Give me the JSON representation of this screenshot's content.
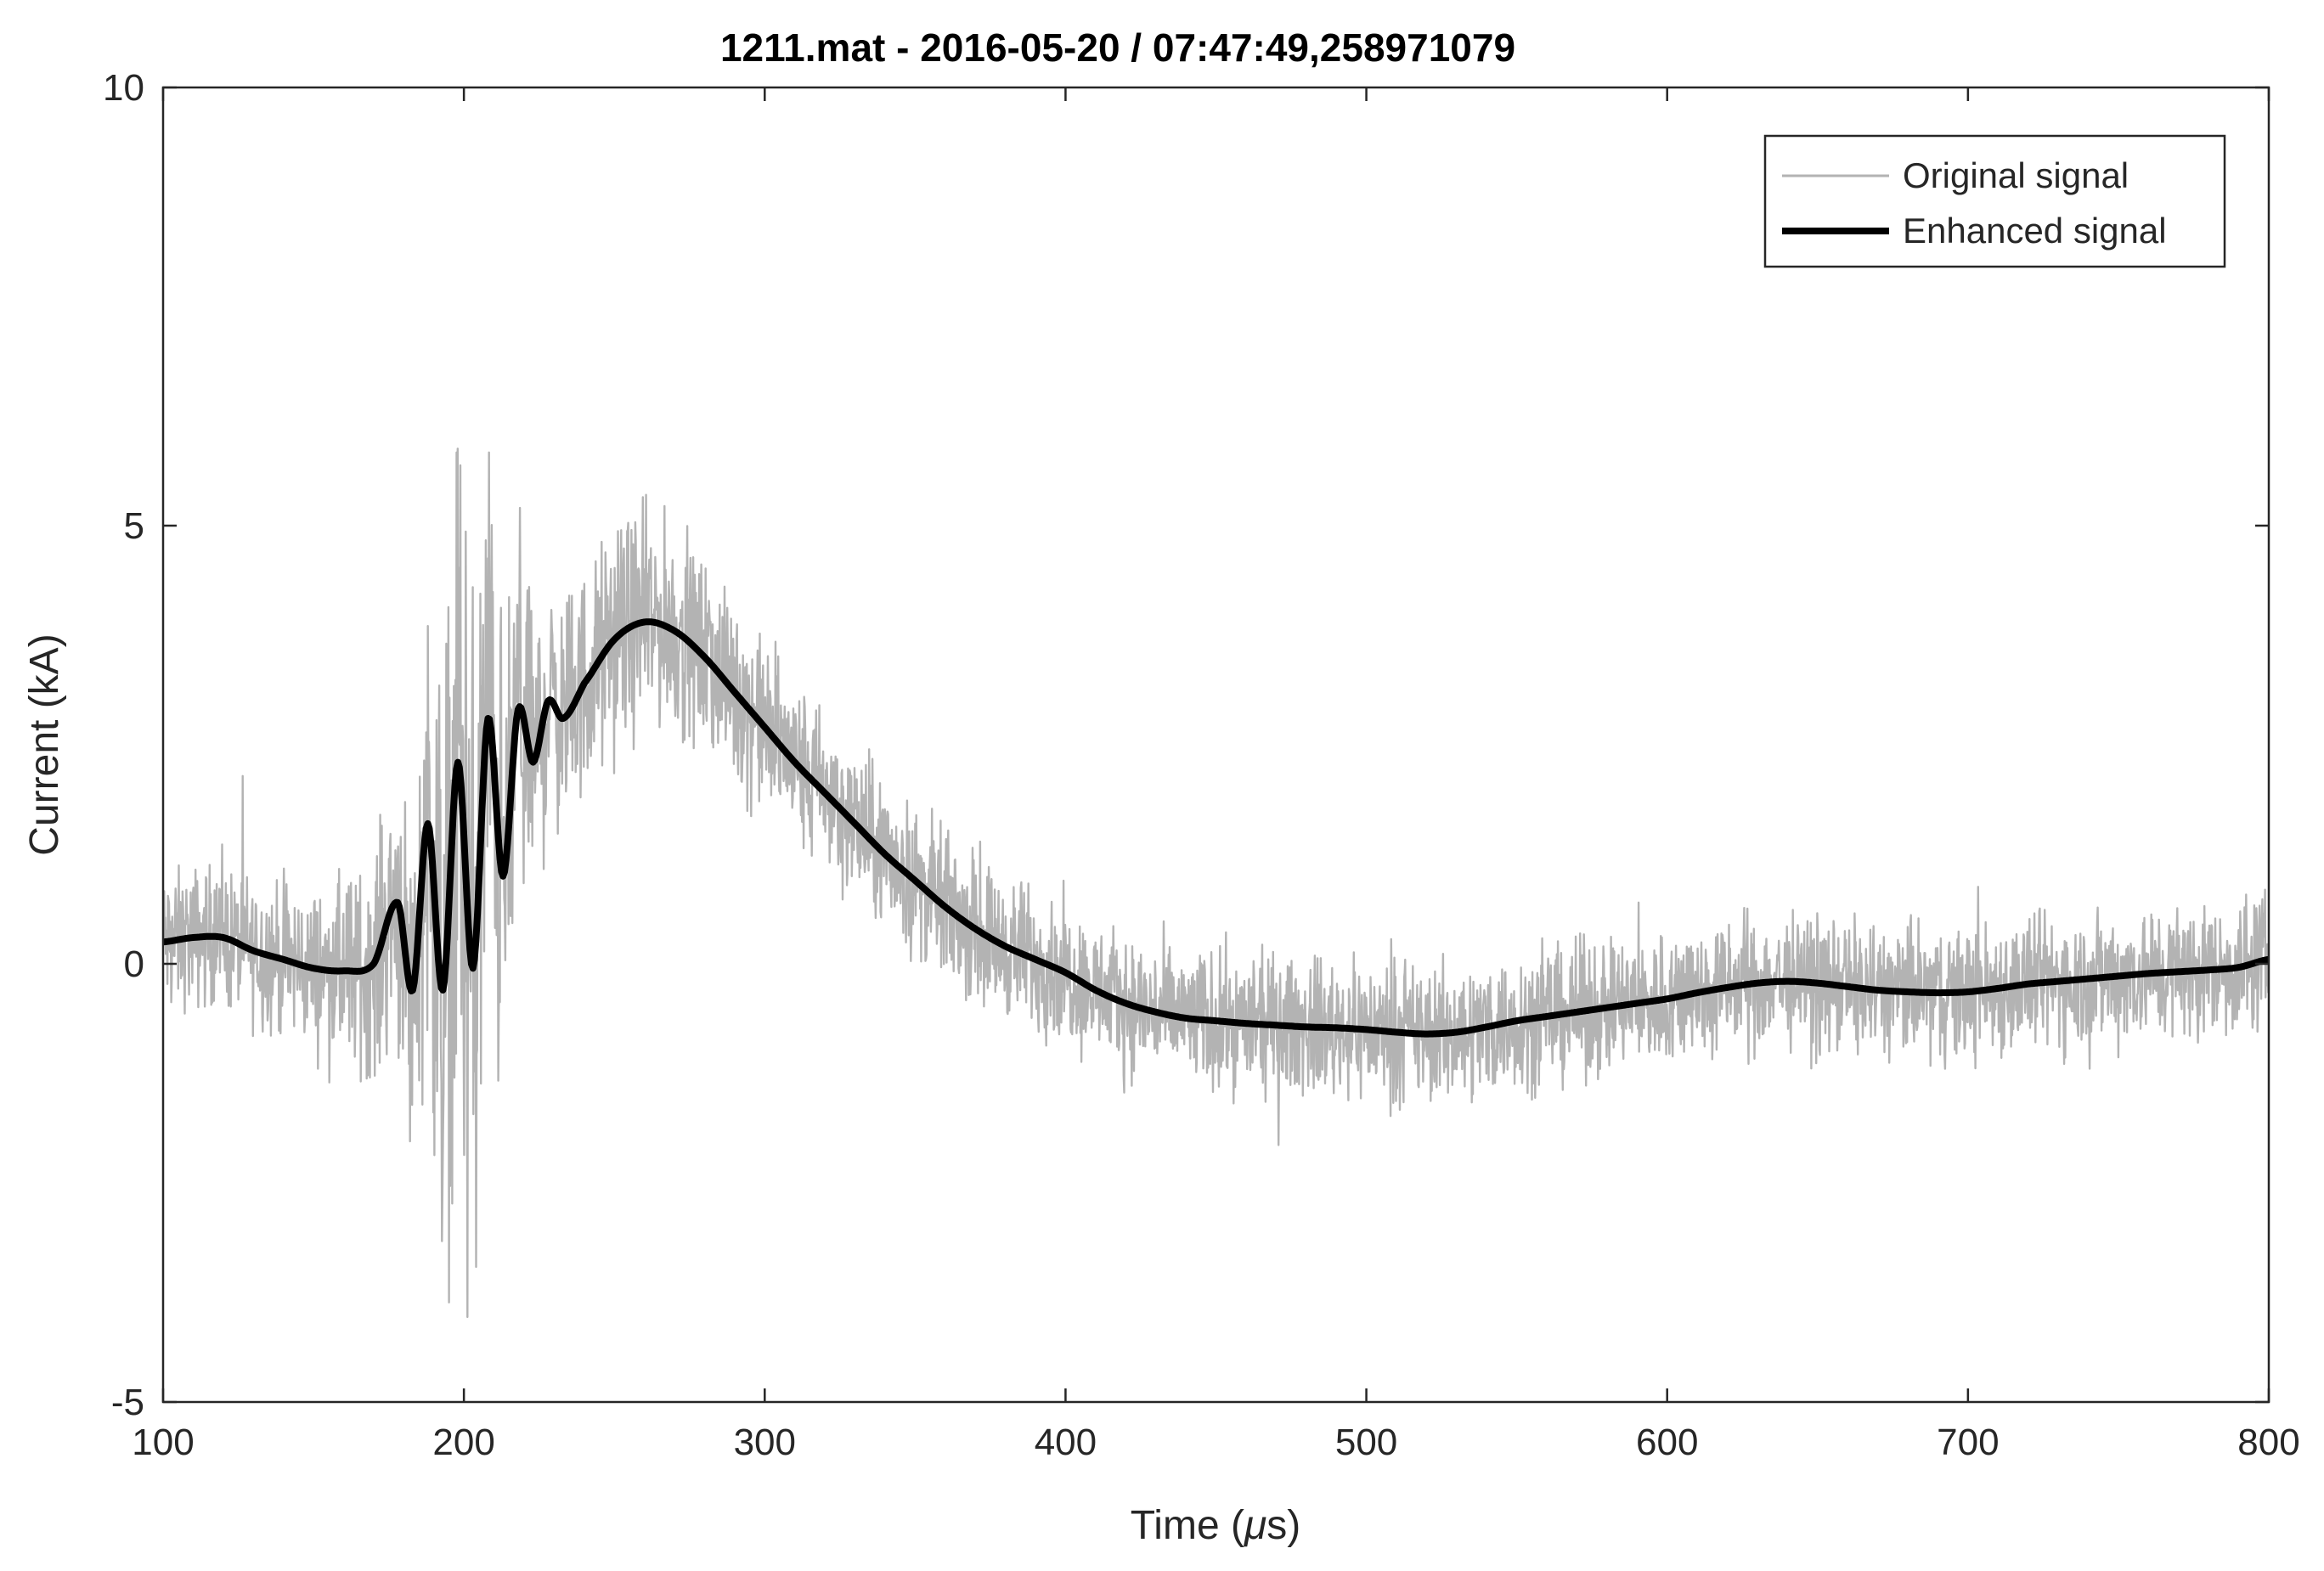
{
  "chart_data": {
    "type": "line",
    "title": "1211.mat - 2016-05-20 / 07:47:49,258971079",
    "xlabel_prefix": "Time (",
    "xlabel_mu": "μ",
    "xlabel_suffix": "s)",
    "ylabel": "Current (kA)",
    "xlim": [
      100,
      800
    ],
    "ylim": [
      -5,
      10
    ],
    "x_ticks": [
      100,
      200,
      300,
      400,
      500,
      600,
      700,
      800
    ],
    "y_ticks": [
      -5,
      0,
      5,
      10
    ],
    "grid": false,
    "legend_position": "top-right",
    "colors": {
      "original": "#b3b3b3",
      "enhanced": "#000000"
    },
    "series": [
      {
        "name": "Original signal",
        "noise_envelope": {
          "x": [
            100,
            150,
            170,
            185,
            195,
            200,
            205,
            215,
            230,
            260,
            290,
            330,
            370,
            420,
            500,
            600,
            700,
            800
          ],
          "amplitude": [
            1.4,
            1.6,
            2.2,
            3.8,
            7.0,
            9.0,
            7.0,
            4.5,
            2.4,
            2.2,
            1.8,
            1.6,
            1.5,
            1.4,
            1.4,
            1.4,
            1.4,
            1.4
          ]
        }
      },
      {
        "name": "Enhanced signal",
        "x": [
          100,
          110,
          120,
          130,
          140,
          150,
          160,
          170,
          178,
          183,
          188,
          193,
          198,
          203,
          208,
          213,
          218,
          223,
          228,
          233,
          240,
          250,
          260,
          270,
          280,
          290,
          300,
          310,
          320,
          330,
          340,
          350,
          360,
          370,
          380,
          390,
          400,
          410,
          420,
          430,
          440,
          450,
          460,
          470,
          480,
          490,
          500,
          510,
          520,
          530,
          540,
          550,
          560,
          570,
          580,
          590,
          600,
          610,
          620,
          630,
          640,
          650,
          660,
          670,
          680,
          690,
          700,
          710,
          720,
          730,
          740,
          750,
          760,
          770,
          780,
          790,
          800
        ],
        "values": [
          0.25,
          0.3,
          0.3,
          0.15,
          0.05,
          -0.05,
          -0.08,
          0.0,
          0.7,
          -0.3,
          1.6,
          -0.3,
          2.3,
          -0.05,
          2.8,
          1.0,
          2.9,
          2.3,
          3.0,
          2.8,
          3.2,
          3.7,
          3.9,
          3.8,
          3.5,
          3.1,
          2.7,
          2.3,
          1.95,
          1.6,
          1.25,
          0.95,
          0.65,
          0.4,
          0.2,
          0.05,
          -0.1,
          -0.3,
          -0.45,
          -0.55,
          -0.62,
          -0.65,
          -0.68,
          -0.7,
          -0.72,
          -0.73,
          -0.75,
          -0.78,
          -0.8,
          -0.78,
          -0.72,
          -0.65,
          -0.6,
          -0.55,
          -0.5,
          -0.45,
          -0.4,
          -0.33,
          -0.27,
          -0.22,
          -0.2,
          -0.22,
          -0.26,
          -0.3,
          -0.32,
          -0.33,
          -0.32,
          -0.28,
          -0.23,
          -0.2,
          -0.17,
          -0.14,
          -0.11,
          -0.09,
          -0.07,
          -0.04,
          0.05
        ]
      }
    ]
  }
}
